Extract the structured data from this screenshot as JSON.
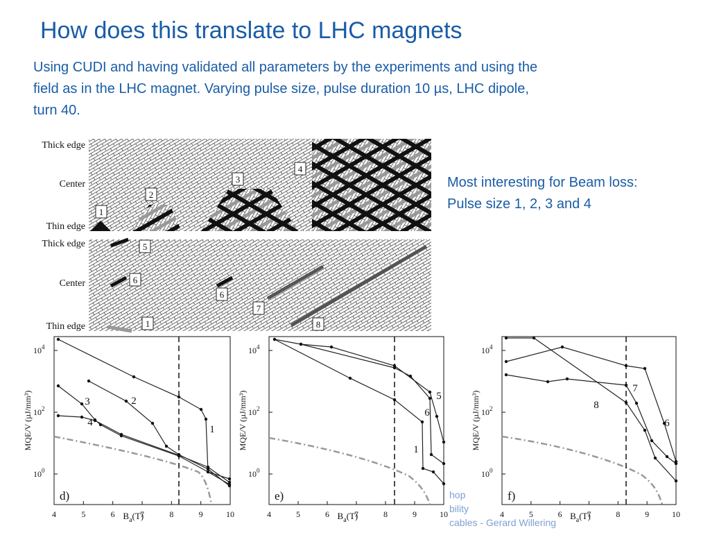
{
  "title": "How does this translate to LHC magnets",
  "body": [
    "Using CUDI and having validated all parameters by the experiments and using the",
    "field as in the LHC magnet. Varying pulse size, pulse duration 10 µs, LHC dipole,",
    "turn 40."
  ],
  "note": [
    "Most interesting for Beam loss:",
    "Pulse size 1, 2, 3 and 4"
  ],
  "figure": {
    "top_panel": {
      "row_labels": [
        "Thick edge",
        "Center",
        "Thin edge"
      ],
      "pulse_labels": [
        "1",
        "2",
        "3",
        "4"
      ]
    },
    "bottom_panel": {
      "row_labels": [
        "Thick edge",
        "Center",
        "Thin edge"
      ],
      "pulse_labels": [
        "5",
        "6",
        "6",
        "7",
        "8",
        "1"
      ]
    },
    "axis": {
      "ylabel": "MQE/V (µJ/mm³)",
      "xlabel": {
        "symbol": "B",
        "sub": "a",
        "unit": "(T)"
      },
      "xticks": [
        "4",
        "5",
        "6",
        "7",
        "8",
        "9",
        "10"
      ],
      "yticks": [
        {
          "base": "10",
          "exp": "4"
        },
        {
          "base": "10",
          "exp": "2"
        },
        {
          "base": "10",
          "exp": "0"
        }
      ]
    },
    "plots": [
      {
        "panel": "d)",
        "curve_labels": [
          "1",
          "2",
          "3",
          "4"
        ]
      },
      {
        "panel": "e)",
        "curve_labels": [
          "5",
          "6",
          "1"
        ]
      },
      {
        "panel": "f)",
        "curve_labels": [
          "7",
          "8",
          "6"
        ]
      }
    ]
  },
  "footer": [
    "hop",
    "bility",
    "cables - Gerard Willering"
  ]
}
